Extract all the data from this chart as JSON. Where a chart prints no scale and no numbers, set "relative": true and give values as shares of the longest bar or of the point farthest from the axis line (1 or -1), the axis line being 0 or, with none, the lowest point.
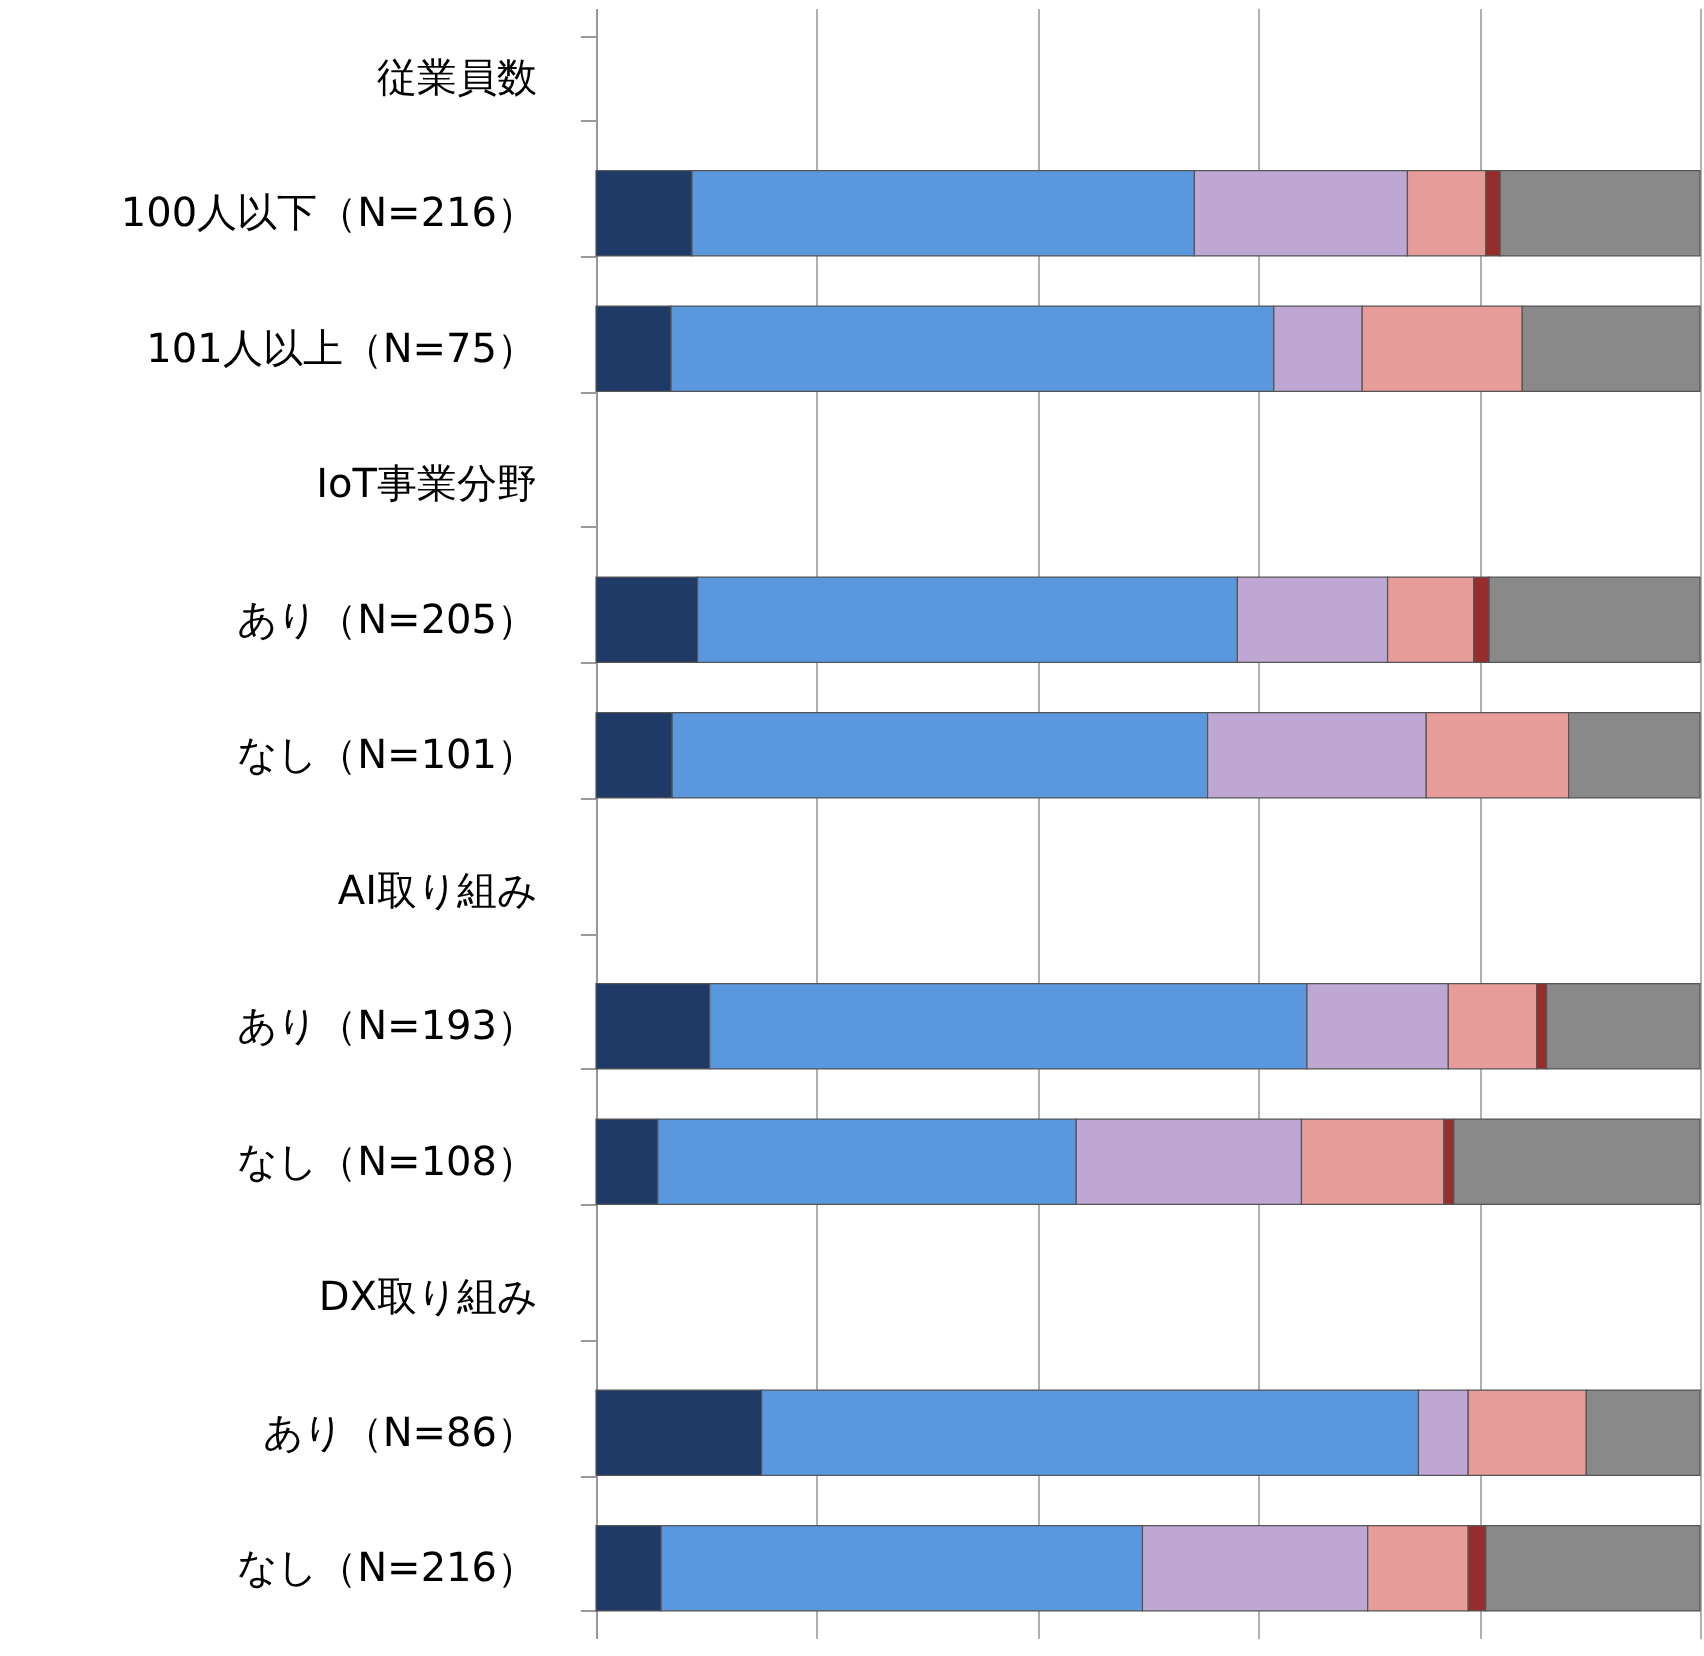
{
  "chart_data": {
    "type": "bar",
    "orientation": "horizontal",
    "stacked": true,
    "relative": true,
    "grid": "x",
    "categories": [
      "従業員数",
      "100人以下（N=216）",
      "101人以上（N=75）",
      "IoT事業分野",
      "あり（N=205）",
      "なし（N=101）",
      "AI取り組み",
      "あり（N=193）",
      "なし（N=108）",
      "DX取り組み",
      "あり（N=86）",
      "なし（N=216）"
    ],
    "series": [
      {
        "color": "#1f3a66",
        "values": [
          null,
          0.087,
          0.068,
          null,
          0.092,
          0.069,
          null,
          0.103,
          0.056,
          null,
          0.15,
          0.059
        ]
      },
      {
        "color": "#5b97dc",
        "values": [
          null,
          0.455,
          0.546,
          null,
          0.489,
          0.485,
          null,
          0.541,
          0.379,
          null,
          0.595,
          0.436
        ]
      },
      {
        "color": "#bea8d3",
        "values": [
          null,
          0.193,
          0.08,
          null,
          0.136,
          0.198,
          null,
          0.128,
          0.204,
          null,
          0.045,
          0.204
        ]
      },
      {
        "color": "#e69c99",
        "values": [
          null,
          0.071,
          0.145,
          null,
          0.078,
          0.129,
          null,
          0.08,
          0.129,
          null,
          0.107,
          0.091
        ]
      },
      {
        "color": "#962d2d",
        "values": [
          null,
          0.013,
          null,
          null,
          0.014,
          null,
          null,
          0.009,
          0.009,
          null,
          null,
          0.016
        ]
      },
      {
        "color": "#898989",
        "values": [
          null,
          0.181,
          0.161,
          null,
          0.191,
          0.119,
          null,
          0.139,
          0.223,
          null,
          0.103,
          0.194
        ]
      }
    ]
  }
}
